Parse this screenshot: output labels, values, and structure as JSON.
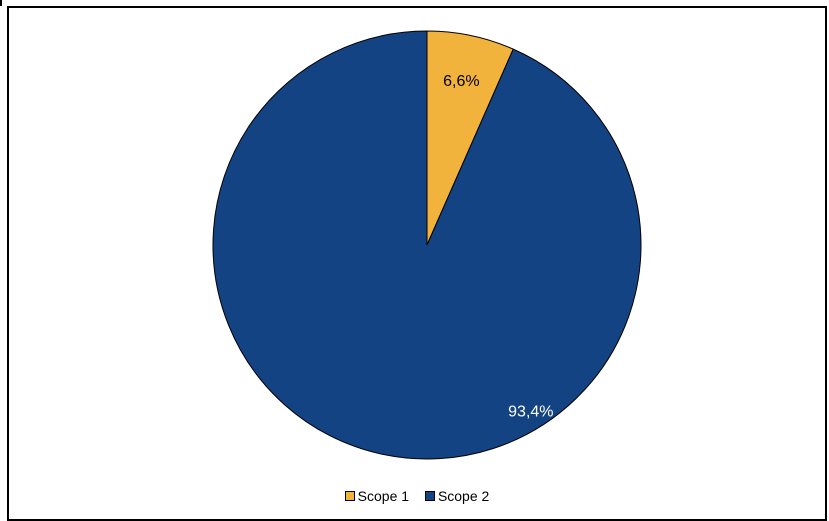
{
  "chart_data": {
    "type": "pie",
    "title": "",
    "categories": [
      "Scope 1",
      "Scope 2"
    ],
    "values": [
      6.6,
      93.4
    ],
    "labels": [
      "6,6%",
      "93,4%"
    ],
    "colors": [
      "#F2B33D",
      "#134383"
    ],
    "label_colors": [
      "#000000",
      "#ffffff"
    ],
    "start_angle": "12 o'clock",
    "direction": "clockwise",
    "legend": {
      "position": "bottom",
      "entries": [
        "Scope 1",
        "Scope 2"
      ]
    }
  }
}
